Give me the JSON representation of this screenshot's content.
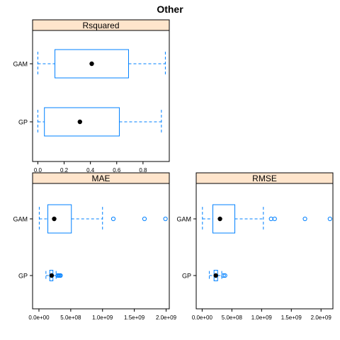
{
  "figure": {
    "title": "Other"
  },
  "colors": {
    "box": "#0080ff",
    "strip": "#ffe5cc",
    "outline": "#000000",
    "median": "#000000"
  },
  "chart_data": [
    {
      "type": "boxplot",
      "title": "Rsquared",
      "categories": [
        "GAM",
        "GP"
      ],
      "xlim": [
        -0.04,
        1.0
      ],
      "ticks": [
        0.0,
        0.2,
        0.4,
        0.6,
        0.8
      ],
      "tick_labels": [
        "0.0",
        "0.2",
        "0.4",
        "0.6",
        "0.8"
      ],
      "boxes": [
        {
          "name": "GAM",
          "whisker_low": 0.0,
          "q1": 0.13,
          "median": 0.41,
          "q3": 0.69,
          "whisker_high": 0.97,
          "outliers": []
        },
        {
          "name": "GP",
          "whisker_low": 0.0,
          "q1": 0.05,
          "median": 0.32,
          "q3": 0.62,
          "whisker_high": 0.94,
          "outliers": []
        }
      ]
    },
    {
      "type": "boxplot",
      "title": "MAE",
      "categories": [
        "GAM",
        "GP"
      ],
      "xlim": [
        -100000000.0,
        2050000000.0
      ],
      "ticks": [
        0,
        500000000.0,
        1000000000.0,
        1500000000.0,
        2000000000.0
      ],
      "tick_labels": [
        "0.0e+00",
        "5.0e+08",
        "1.0e+09",
        "1.5e+09",
        "2.0e+09"
      ],
      "boxes": [
        {
          "name": "GAM",
          "whisker_low": 5000000.0,
          "q1": 140000000.0,
          "median": 240000000.0,
          "q3": 510000000.0,
          "whisker_high": 1000000000.0,
          "outliers": [
            1170000000.0,
            1660000000.0,
            1990000000.0
          ]
        },
        {
          "name": "GP",
          "whisker_low": 110000000.0,
          "q1": 170000000.0,
          "median": 200000000.0,
          "q3": 220000000.0,
          "whisker_high": 270000000.0,
          "outliers": [
            295000000.0,
            310000000.0,
            325000000.0,
            340000000.0
          ]
        }
      ]
    },
    {
      "type": "boxplot",
      "title": "RMSE",
      "categories": [
        "GAM",
        "GP"
      ],
      "xlim": [
        -100000000.0,
        2200000000.0
      ],
      "ticks": [
        0,
        500000000.0,
        1000000000.0,
        1500000000.0,
        2000000000.0
      ],
      "tick_labels": [
        "0.0e+00",
        "5.0e+08",
        "1.0e+09",
        "1.5e+09",
        "2.0e+09"
      ],
      "boxes": [
        {
          "name": "GAM",
          "whisker_low": 5000000.0,
          "q1": 180000000.0,
          "median": 300000000.0,
          "q3": 550000000.0,
          "whisker_high": 1030000000.0,
          "outliers": [
            1160000000.0,
            1220000000.0,
            1730000000.0,
            2150000000.0
          ]
        },
        {
          "name": "GP",
          "whisker_low": 120000000.0,
          "q1": 200000000.0,
          "median": 230000000.0,
          "q3": 260000000.0,
          "whisker_high": 330000000.0,
          "outliers": [
            360000000.0,
            385000000.0
          ]
        }
      ]
    }
  ]
}
